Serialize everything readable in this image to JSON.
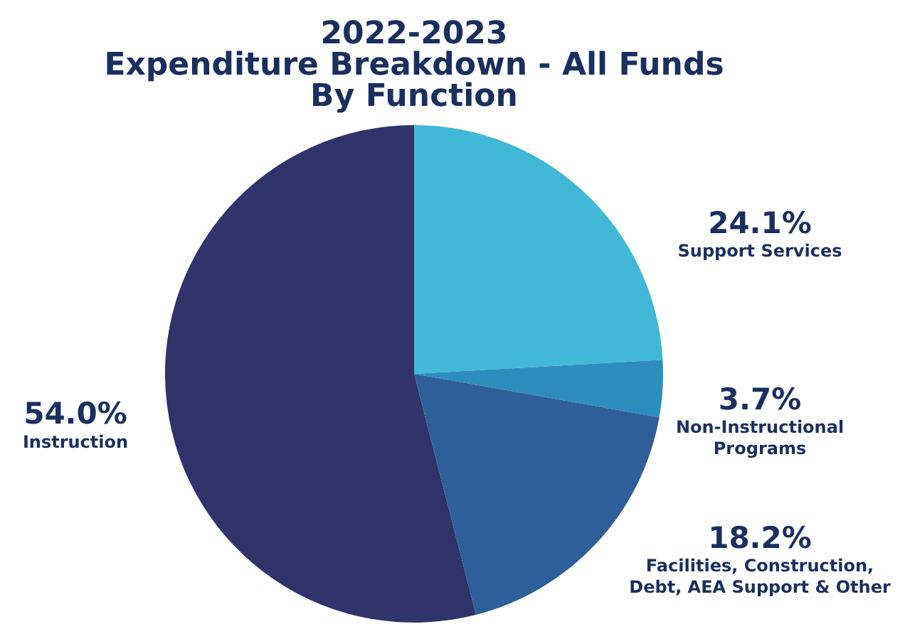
{
  "chart_data": {
    "type": "pie",
    "title": "2022-2023\nExpenditure Breakdown - All Funds\nBy Function",
    "categories": [
      "Support Services",
      "Non-Instructional Programs",
      "Facilities, Construction, Debt, AEA Support & Other",
      "Instruction"
    ],
    "values": [
      24.1,
      3.7,
      18.2,
      54.0
    ],
    "value_labels": [
      "24.1%",
      "3.7%",
      "18.2%",
      "54.0%"
    ],
    "colors": [
      "#42b8d8",
      "#2e8dbf",
      "#2f5f9a",
      "#31336b"
    ],
    "legend": false
  }
}
